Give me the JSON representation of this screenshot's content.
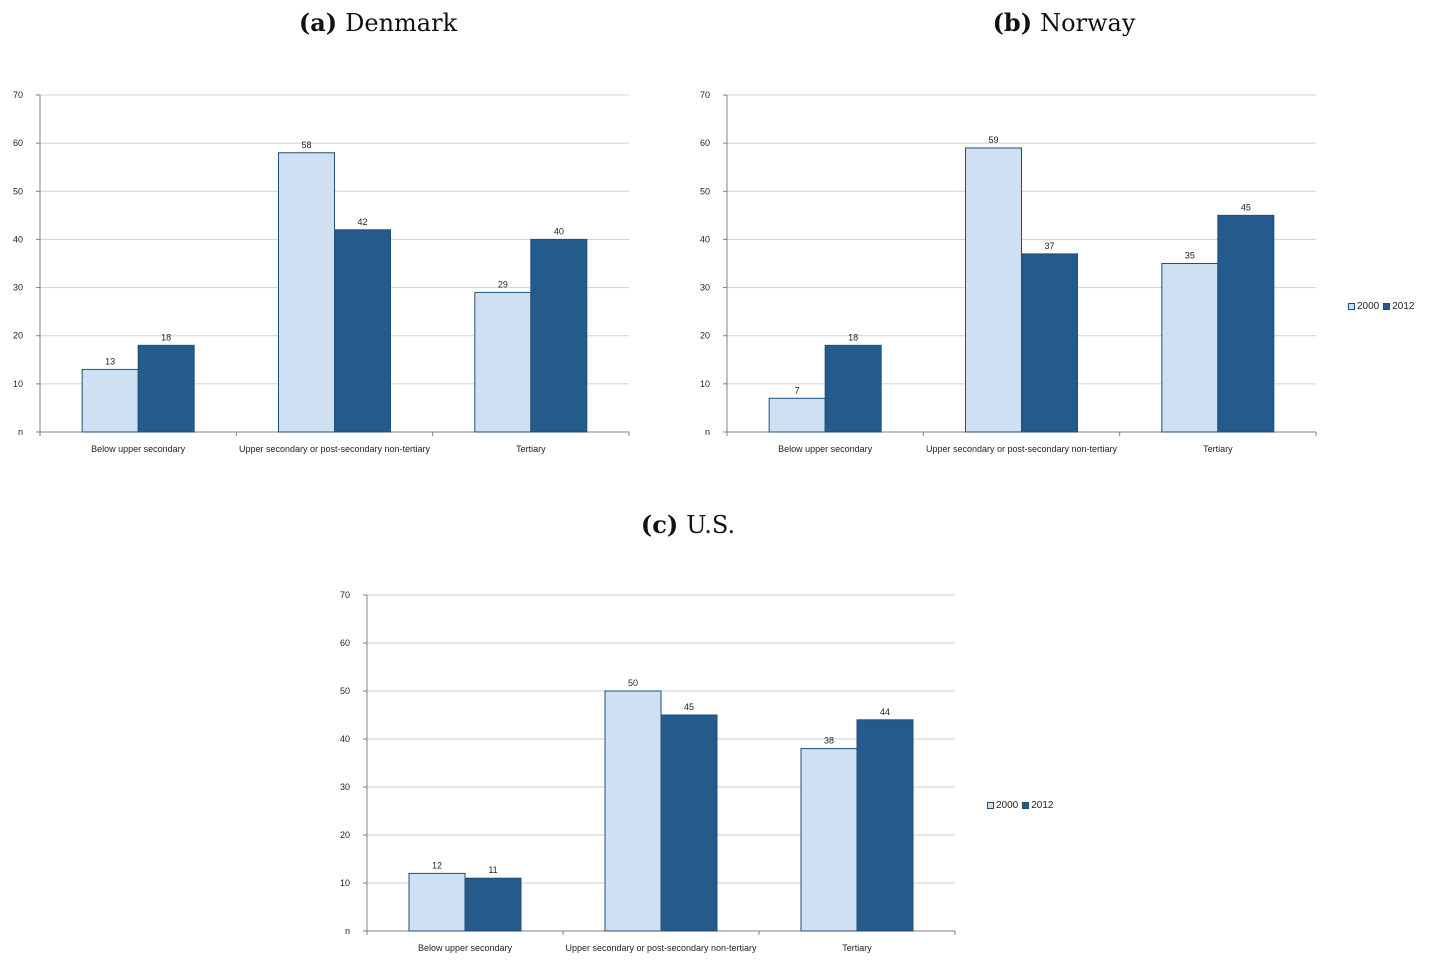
{
  "captions": {
    "a": {
      "letter": "(a)",
      "title": "Denmark"
    },
    "b": {
      "letter": "(b)",
      "title": "Norway"
    },
    "c": {
      "letter": "(c)",
      "title": "U.S."
    }
  },
  "colors": {
    "series_2000": "#cfe0f3",
    "series_2012": "#255a8d",
    "bar_border": "#1f4e79",
    "grid": "#d0d0d0",
    "axis": "#808080"
  },
  "chart_data": [
    {
      "type": "bar",
      "title": "Denmark",
      "categories": [
        "Below upper secondary",
        "Upper secondary or post-secondary non-tertiary",
        "Tertiary"
      ],
      "series": [
        {
          "name": "2000",
          "values": [
            13,
            58,
            29
          ]
        },
        {
          "name": "2012",
          "values": [
            18,
            42,
            40
          ]
        }
      ],
      "data_labels": [
        [
          "13",
          "58",
          "29"
        ],
        [
          "18",
          "42",
          "40"
        ]
      ],
      "y_ticks": [
        "n",
        "10",
        "20",
        "30",
        "40",
        "50",
        "60",
        "70"
      ],
      "ylim": [
        0,
        70
      ],
      "grid": true,
      "legend": "none"
    },
    {
      "type": "bar",
      "title": "Norway",
      "categories": [
        "Below upper secondary",
        "Upper secondary or post-secondary non-tertiary",
        "Tertiary"
      ],
      "series": [
        {
          "name": "2000",
          "values": [
            7,
            59,
            35
          ]
        },
        {
          "name": "2012",
          "values": [
            18,
            37,
            45
          ]
        }
      ],
      "data_labels": [
        [
          "7",
          "59",
          "35"
        ],
        [
          "18",
          "37",
          "45"
        ]
      ],
      "y_ticks": [
        "n",
        "10",
        "20",
        "30",
        "40",
        "50",
        "60",
        "70"
      ],
      "ylim": [
        0,
        70
      ],
      "grid": true,
      "legend": "right"
    },
    {
      "type": "bar",
      "title": "U.S.",
      "categories": [
        "Below upper secondary",
        "Upper secondary or post-secondary non-tertiary",
        "Tertiary"
      ],
      "series": [
        {
          "name": "2000",
          "values": [
            12,
            50,
            38
          ]
        },
        {
          "name": "2012",
          "values": [
            11,
            45,
            44
          ]
        }
      ],
      "data_labels": [
        [
          "12",
          "50",
          "38"
        ],
        [
          "11",
          "45",
          "44"
        ]
      ],
      "y_ticks": [
        "n",
        "10",
        "20",
        "30",
        "40",
        "50",
        "60",
        "70"
      ],
      "ylim": [
        0,
        70
      ],
      "grid": true,
      "legend": "right"
    }
  ]
}
